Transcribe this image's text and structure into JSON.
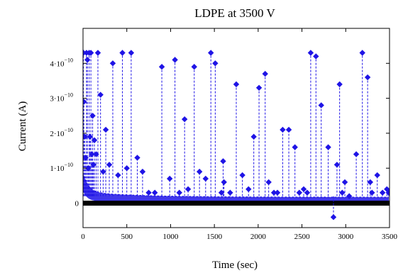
{
  "chart_data": {
    "type": "scatter",
    "title": "LDPE at 3500 V",
    "xlabel": "Time (sec)",
    "ylabel": "Current (A)",
    "xlim": [
      0,
      3500
    ],
    "ylim": [
      -7e-11,
      5e-10
    ],
    "x_ticks": [
      {
        "value": 0,
        "label": "0"
      },
      {
        "value": 500,
        "label": "500"
      },
      {
        "value": 1000,
        "label": "1000"
      },
      {
        "value": 1500,
        "label": "1500"
      },
      {
        "value": 2000,
        "label": "2000"
      },
      {
        "value": 2500,
        "label": "2500"
      },
      {
        "value": 3000,
        "label": "3000"
      },
      {
        "value": 3500,
        "label": "3500"
      }
    ],
    "y_ticks": [
      {
        "value": 0,
        "mantissa": "0",
        "exponent": ""
      },
      {
        "value": 1e-10,
        "mantissa": "1·10",
        "exponent": "−10"
      },
      {
        "value": 2e-10,
        "mantissa": "2·10",
        "exponent": "−10"
      },
      {
        "value": 3e-10,
        "mantissa": "3·10",
        "exponent": "−10"
      },
      {
        "value": 4e-10,
        "mantissa": "4·10",
        "exponent": "−10"
      }
    ],
    "grid": false,
    "colors": {
      "series": "#1f14e6",
      "baseline": "#000000"
    },
    "series": [
      {
        "marker": "diamond",
        "line": "dashed",
        "x": [
          5,
          10,
          20,
          30,
          40,
          50,
          60,
          70,
          80,
          90,
          100,
          110,
          120,
          130,
          150,
          170,
          200,
          230,
          260,
          300,
          340,
          400,
          450,
          500,
          550,
          620,
          680,
          750,
          820,
          900,
          990,
          1050,
          1100,
          1160,
          1200,
          1270,
          1330,
          1400,
          1460,
          1510,
          1580,
          1600,
          1610,
          1680,
          1750,
          1820,
          1890,
          1950,
          2010,
          2080,
          2120,
          2180,
          2220,
          2280,
          2350,
          2420,
          2470,
          2520,
          2560,
          2600,
          2660,
          2720,
          2800,
          2860,
          2900,
          2930,
          2960,
          2990,
          3040,
          3120,
          3190,
          3250,
          3280,
          3300,
          3360,
          3420,
          3470,
          3490
        ],
        "y": [
          4.3e-10,
          2.9e-10,
          1.9e-10,
          1.3e-10,
          4.3e-10,
          4.1e-10,
          1e-10,
          4.3e-10,
          1.9e-10,
          4.3e-10,
          1.4e-10,
          2.5e-10,
          1.1e-10,
          1.8e-10,
          1.4e-10,
          4.3e-10,
          3.1e-10,
          9e-11,
          2.1e-10,
          1.1e-10,
          4e-10,
          8e-11,
          4.3e-10,
          1e-10,
          4.3e-10,
          1.3e-10,
          9e-11,
          3e-11,
          3e-11,
          3.9e-10,
          7e-11,
          4.1e-10,
          3e-11,
          2.4e-10,
          4e-11,
          3.9e-10,
          9e-11,
          7e-11,
          4.3e-10,
          4e-10,
          3e-11,
          1.2e-10,
          6e-11,
          3e-11,
          3.4e-10,
          8e-11,
          4e-11,
          1.9e-10,
          3.3e-10,
          3.7e-10,
          6e-11,
          3e-11,
          3e-11,
          2.1e-10,
          2.1e-10,
          1.6e-10,
          3e-11,
          4e-11,
          3e-11,
          4.3e-10,
          4.2e-10,
          2.8e-10,
          1.6e-10,
          -4e-11,
          1.1e-10,
          3.4e-10,
          3e-11,
          6e-11,
          2e-11,
          1.4e-10,
          4.3e-10,
          3.6e-10,
          6e-11,
          3e-11,
          8e-11,
          3e-11,
          4e-11,
          3e-11
        ]
      }
    ]
  }
}
